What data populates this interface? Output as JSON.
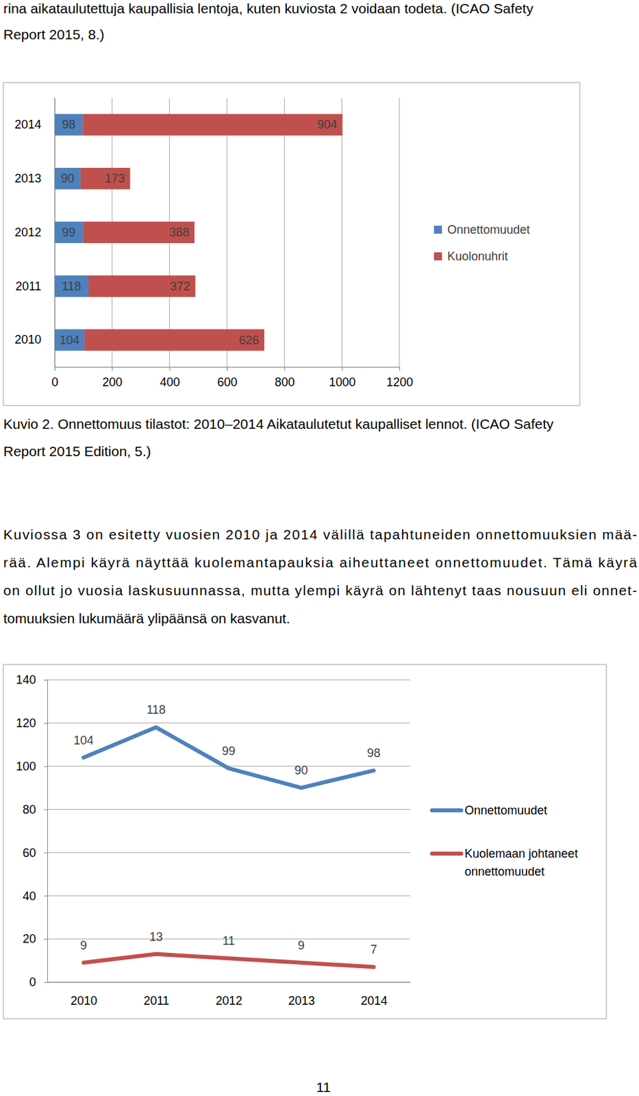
{
  "document": {
    "intro_lines": [
      "rina aikataulutettuja kaupallisia lentoja, kuten kuviosta 2 voidaan todeta. (ICAO Safety",
      "Report 2015, 8.)"
    ],
    "caption_lines": [
      "Kuvio 2. Onnettomuus tilastot: 2010–2014 Aikataulutetut kaupalliset lennot. (ICAO Safety",
      "Report 2015 Edition, 5.)"
    ],
    "paragraph_lines": [
      "Kuviossa 3 on esitetty vuosien 2010 ja 2014 välillä tapahtuneiden onnettomuuksien mää-",
      "rää. Alempi käyrä näyttää kuolemantapauksia aiheuttaneet onnettomuudet. Tämä käyrä",
      "on ollut jo vuosia laskusuunnassa, mutta ylempi käyrä on lähtenyt taas nousuun eli onnet-",
      "tomuuksien lukumäärä ylipäänsä on kasvanut."
    ],
    "page_number": "11"
  },
  "chart_data": [
    {
      "type": "bar",
      "orientation": "horizontal",
      "stacked": true,
      "data_labels": true,
      "grid": true,
      "legend": "right",
      "categories": [
        "2010",
        "2011",
        "2012",
        "2013",
        "2014"
      ],
      "series": [
        {
          "name": "Onnettomuudet",
          "color": "#4f81bd",
          "values": [
            104,
            118,
            99,
            90,
            98
          ]
        },
        {
          "name": "Kuolonuhrit",
          "color": "#c0504d",
          "values": [
            626,
            372,
            388,
            173,
            904
          ]
        }
      ],
      "xlim": [
        0,
        1200
      ],
      "xticks": [
        0,
        200,
        400,
        600,
        800,
        1000,
        1200
      ]
    },
    {
      "type": "line",
      "data_labels": true,
      "grid": true,
      "legend": "right",
      "categories": [
        "2010",
        "2011",
        "2012",
        "2013",
        "2014"
      ],
      "series": [
        {
          "name": "Onnettomuudet",
          "color": "#4f81bd",
          "values": [
            104,
            118,
            99,
            90,
            98
          ]
        },
        {
          "name": "Kuolemaan johtaneet onnettomuudet",
          "color": "#c0504d",
          "values": [
            9,
            13,
            11,
            9,
            7
          ]
        }
      ],
      "ylim": [
        0,
        140
      ],
      "yticks": [
        0,
        20,
        40,
        60,
        80,
        100,
        120,
        140
      ]
    }
  ]
}
